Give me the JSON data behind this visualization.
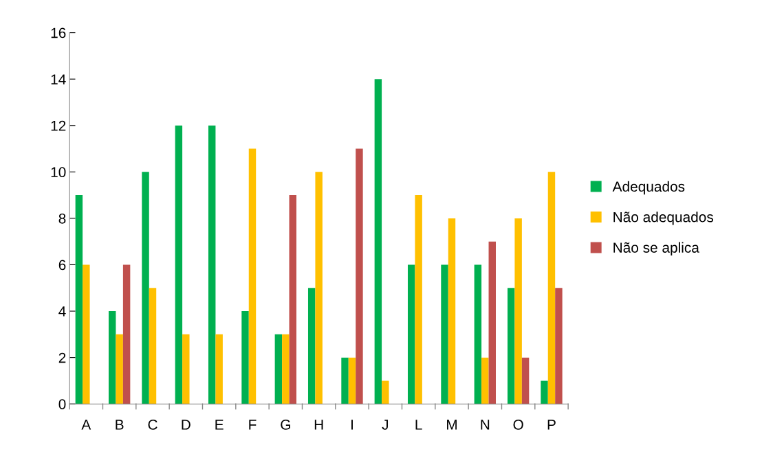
{
  "chart_data": {
    "type": "bar",
    "categories": [
      "A",
      "B",
      "C",
      "D",
      "E",
      "F",
      "G",
      "H",
      "I",
      "J",
      "L",
      "M",
      "N",
      "O",
      "P"
    ],
    "series": [
      {
        "name": "Adequados",
        "color": "#00b050",
        "values": [
          9,
          4,
          10,
          12,
          12,
          4,
          3,
          5,
          2,
          14,
          6,
          6,
          6,
          5,
          1
        ]
      },
      {
        "name": "Não adequados",
        "color": "#ffc000",
        "values": [
          6,
          3,
          5,
          3,
          3,
          11,
          3,
          10,
          2,
          1,
          9,
          8,
          2,
          8,
          10
        ]
      },
      {
        "name": "Não se aplica",
        "color": "#c0504d",
        "values": [
          0,
          6,
          0,
          0,
          0,
          0,
          9,
          0,
          11,
          0,
          0,
          0,
          7,
          2,
          5
        ]
      }
    ],
    "ylim": [
      0,
      16
    ],
    "yticks": [
      0,
      2,
      4,
      6,
      8,
      10,
      12,
      14,
      16
    ],
    "grid": false,
    "legend": "right"
  }
}
